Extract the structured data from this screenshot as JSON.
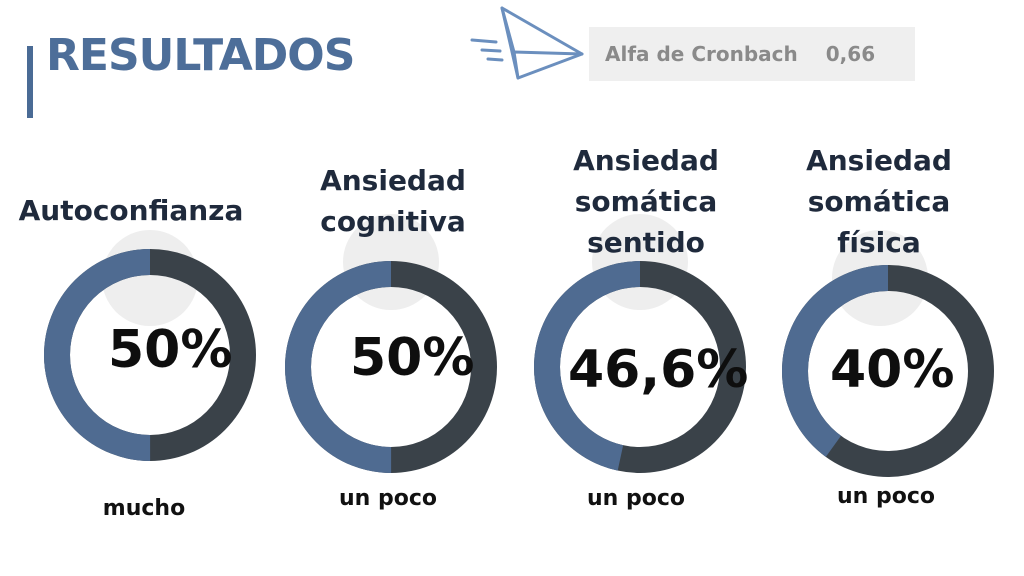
{
  "header": {
    "title": "RESULTADOS"
  },
  "reliability": {
    "label": "Alfa de Cronbach",
    "value": "0,66"
  },
  "icons": {
    "decor": "paper-plane-icon"
  },
  "colors": {
    "filled": "#4f6b91",
    "remaining": "#3a4249",
    "title": "#4d6e99",
    "decor_circle": "#eeeeee"
  },
  "chart_data": {
    "type": "pie",
    "style": "donut",
    "categories": [
      "Autoconfianza",
      "Ansiedad cognitiva",
      "Ansiedad somática sentido",
      "Ansiedad somática física"
    ],
    "values": [
      50,
      50,
      46.6,
      40
    ],
    "unit": "%",
    "items": [
      {
        "heading": [
          "Autoconfianza"
        ],
        "pct_label": "50%",
        "value": 50,
        "level": "mucho"
      },
      {
        "heading": [
          "Ansiedad",
          "cognitiva"
        ],
        "pct_label": "50%",
        "value": 50,
        "level": "un poco"
      },
      {
        "heading": [
          "Ansiedad",
          "somática",
          "sentido"
        ],
        "pct_label": "46,6%",
        "value": 46.6,
        "level": "un poco"
      },
      {
        "heading": [
          "Ansiedad",
          "somática",
          "física"
        ],
        "pct_label": "40%",
        "value": 40,
        "level": "un poco"
      }
    ]
  }
}
